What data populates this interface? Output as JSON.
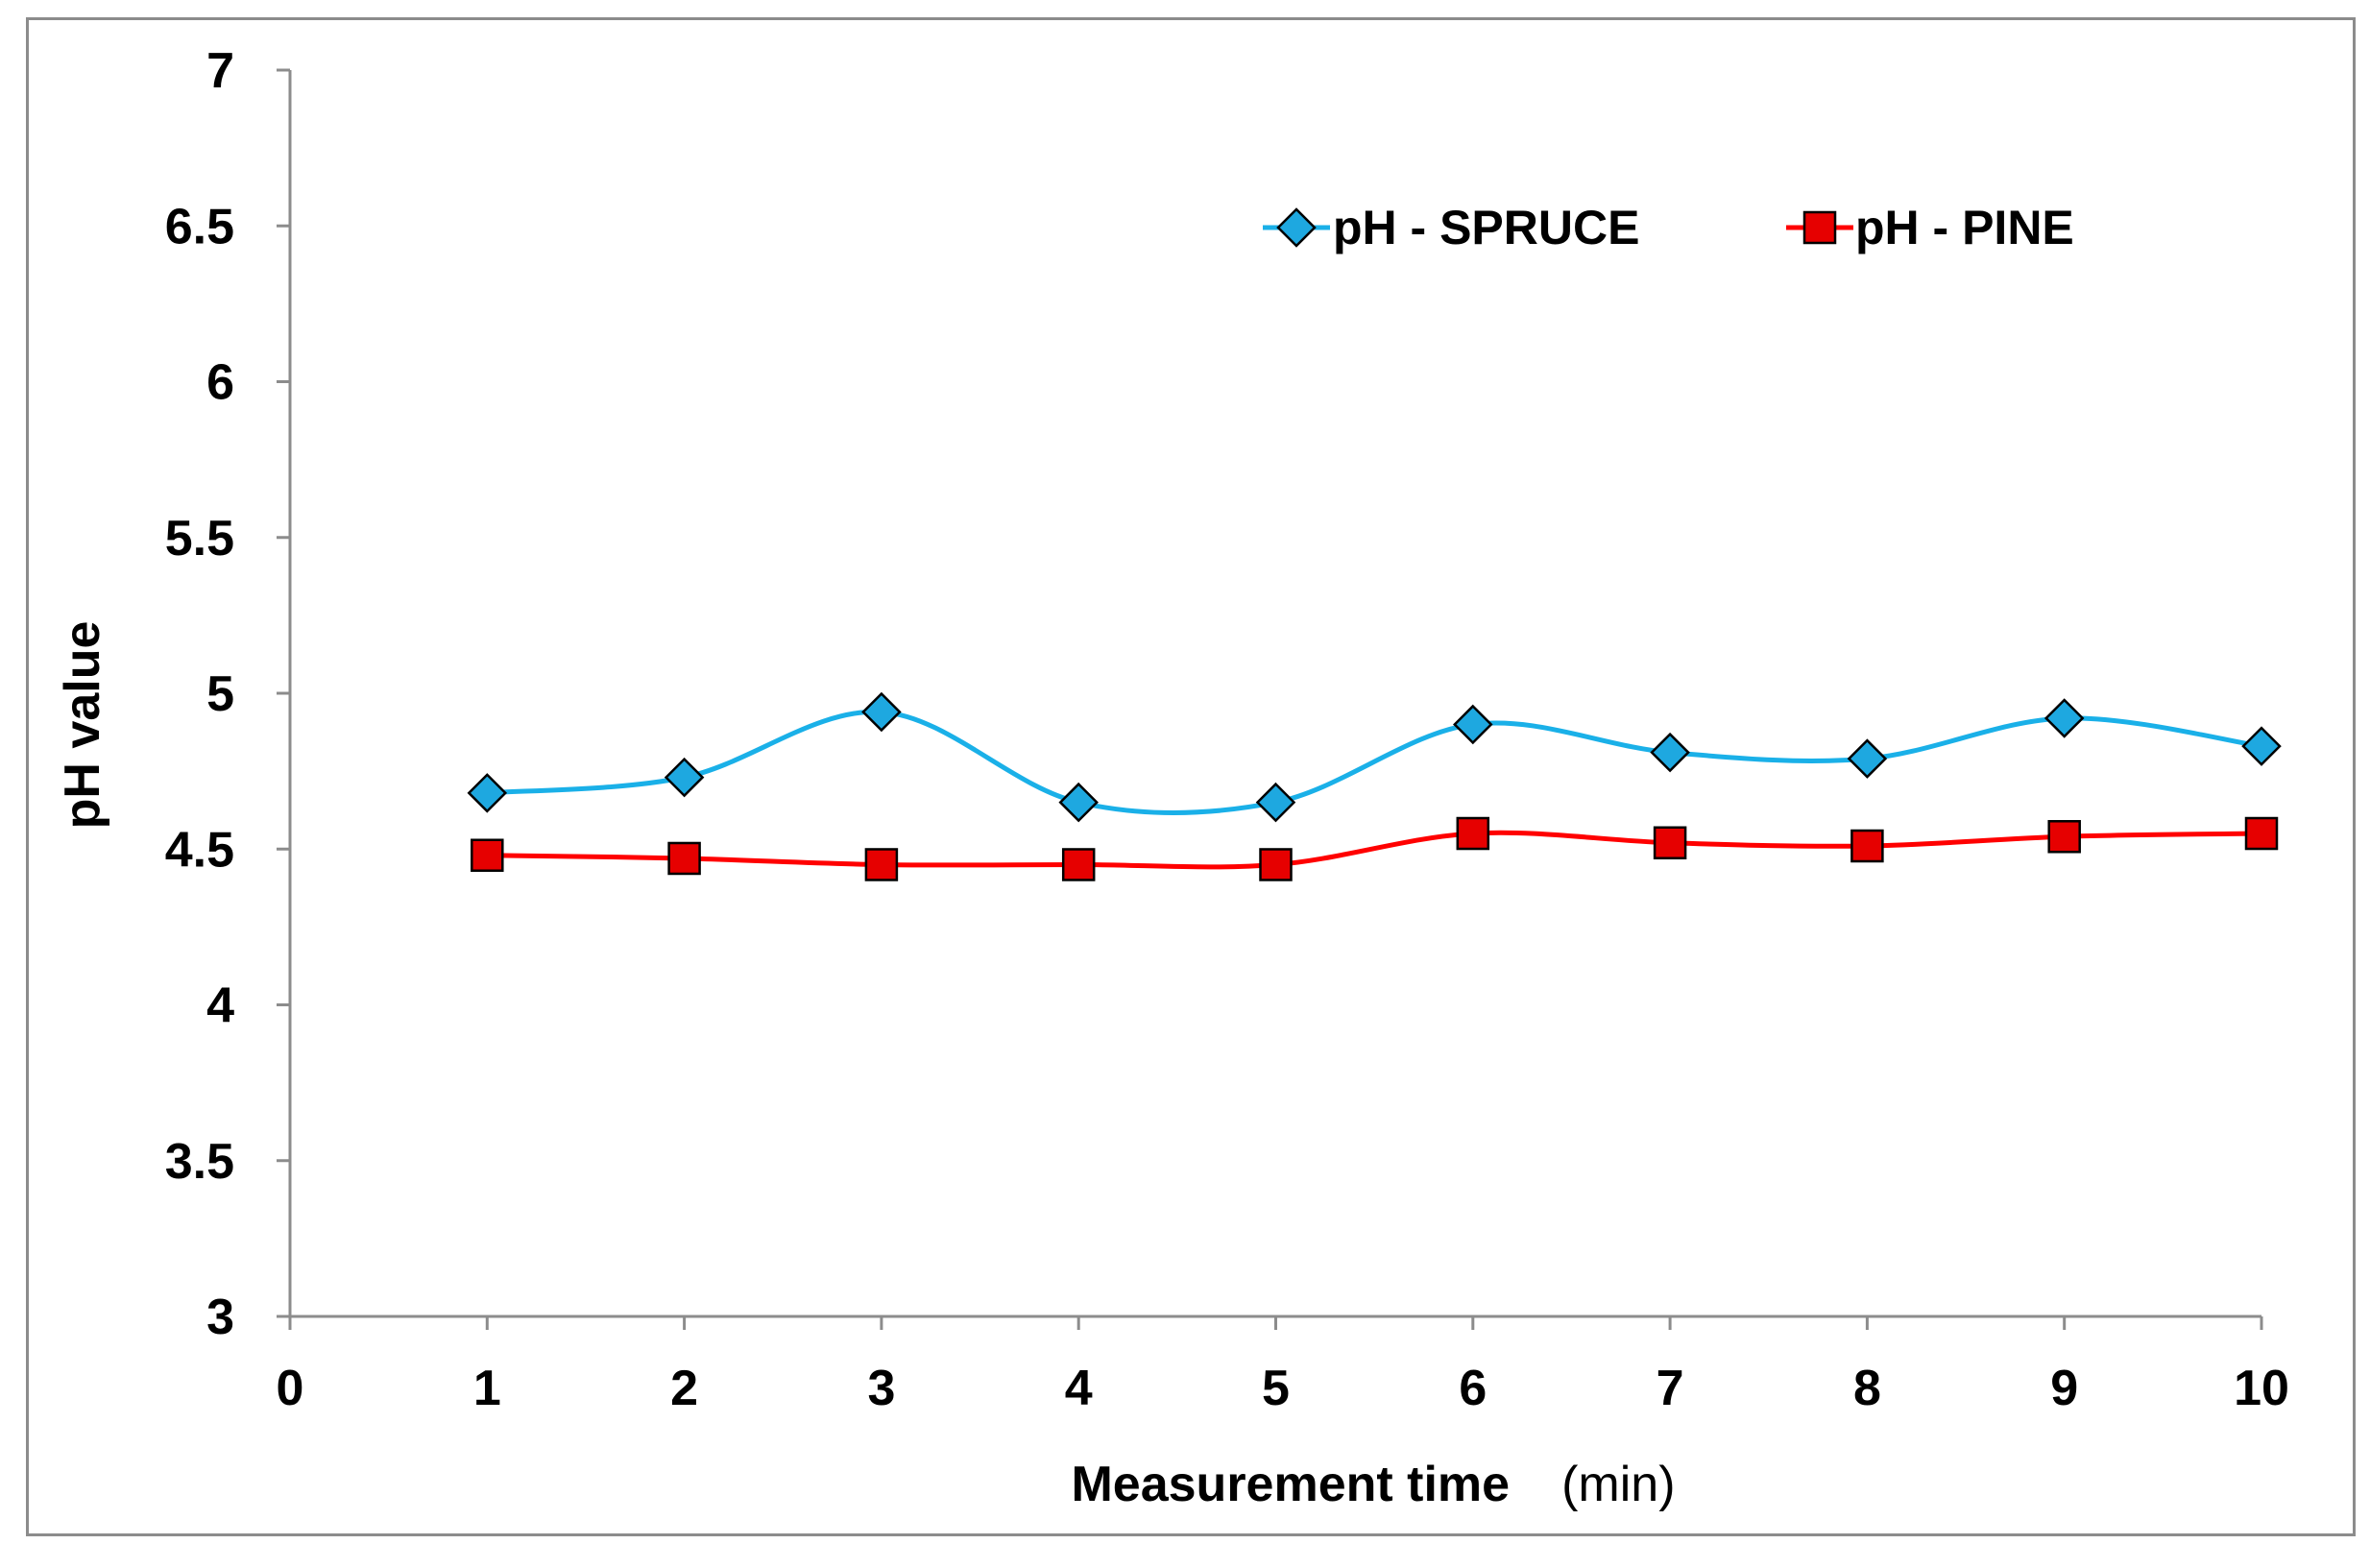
{
  "chart_data": {
    "type": "line",
    "title": "",
    "xlabel": "Measurement time",
    "xlabel_unit": "(min)",
    "ylabel": "pH value",
    "xlim": [
      0,
      10
    ],
    "ylim": [
      3,
      7
    ],
    "x_ticks": [
      "0",
      "1",
      "2",
      "3",
      "4",
      "5",
      "6",
      "7",
      "8",
      "9",
      "10"
    ],
    "y_ticks": [
      "3",
      "3.5",
      "4",
      "4.5",
      "5",
      "5.5",
      "6",
      "6.5",
      "7"
    ],
    "grid": false,
    "smooth": true,
    "legend_position": "top-right",
    "x": [
      1,
      2,
      3,
      4,
      5,
      6,
      7,
      8,
      9,
      10
    ],
    "series": [
      {
        "name": "pH - SPRUCE",
        "marker": "diamond",
        "color": "#1ab0e8",
        "marker_color": "#1ea8e0",
        "values": [
          4.68,
          4.73,
          4.94,
          4.65,
          4.65,
          4.9,
          4.81,
          4.79,
          4.92,
          4.83
        ]
      },
      {
        "name": "pH - PINE",
        "marker": "square",
        "color": "#ff0000",
        "marker_color": "#e60000",
        "values": [
          4.48,
          4.47,
          4.45,
          4.45,
          4.45,
          4.55,
          4.52,
          4.51,
          4.54,
          4.55
        ]
      }
    ]
  }
}
